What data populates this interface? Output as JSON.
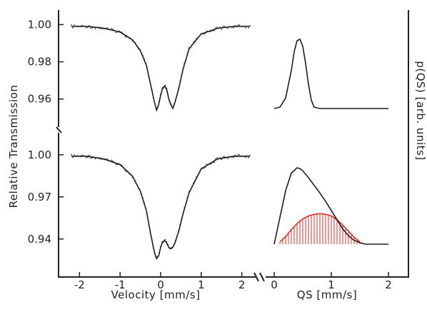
{
  "chart_data": [
    {
      "type": "scatter",
      "panel": "top-left",
      "x_range": [
        -2.2,
        2.2
      ],
      "y_ticks": [
        "1.00",
        "0.98",
        "0.96"
      ],
      "y_tick_values": [
        1.0,
        0.98,
        0.96
      ],
      "ylim": [
        0.948,
        1.004
      ],
      "series": [
        {
          "kind": "fit",
          "x": [
            -2.2,
            -1.8,
            -1.4,
            -1.0,
            -0.7,
            -0.5,
            -0.35,
            -0.25,
            -0.15,
            -0.1,
            -0.05,
            0.0,
            0.05,
            0.1,
            0.15,
            0.2,
            0.25,
            0.3,
            0.35,
            0.45,
            0.55,
            0.7,
            1.0,
            1.4,
            1.8,
            2.2
          ],
          "y": [
            0.999,
            0.999,
            0.998,
            0.996,
            0.992,
            0.986,
            0.978,
            0.968,
            0.958,
            0.954,
            0.957,
            0.962,
            0.966,
            0.967,
            0.965,
            0.96,
            0.957,
            0.955,
            0.958,
            0.966,
            0.976,
            0.987,
            0.995,
            0.998,
            0.999,
            0.999
          ]
        }
      ]
    },
    {
      "type": "scatter",
      "panel": "bottom-left",
      "x_range": [
        -2.2,
        2.2
      ],
      "x_ticks": [
        "-2",
        "-1",
        "0",
        "1",
        "2"
      ],
      "x_tick_values": [
        -2,
        -1,
        0,
        1,
        2
      ],
      "y_ticks": [
        "1.00",
        "0.97",
        "0.94"
      ],
      "y_tick_values": [
        1.0,
        0.97,
        0.94
      ],
      "ylim": [
        0.918,
        1.006
      ],
      "xlabel": "Velocity  [mm/s]",
      "series": [
        {
          "kind": "fit",
          "x": [
            -2.2,
            -1.8,
            -1.4,
            -1.0,
            -0.7,
            -0.5,
            -0.35,
            -0.25,
            -0.15,
            -0.1,
            -0.05,
            0.0,
            0.05,
            0.1,
            0.15,
            0.2,
            0.25,
            0.3,
            0.35,
            0.45,
            0.55,
            0.7,
            1.0,
            1.4,
            1.8,
            2.2
          ],
          "y": [
            0.999,
            0.999,
            0.997,
            0.993,
            0.985,
            0.974,
            0.96,
            0.944,
            0.93,
            0.926,
            0.928,
            0.934,
            0.938,
            0.939,
            0.937,
            0.934,
            0.933,
            0.934,
            0.937,
            0.946,
            0.958,
            0.973,
            0.99,
            0.997,
            0.999,
            0.999
          ]
        }
      ]
    },
    {
      "type": "line",
      "panel": "top-right",
      "x_range": [
        0,
        2
      ],
      "series": [
        {
          "kind": "distribution",
          "x": [
            0.0,
            0.1,
            0.2,
            0.3,
            0.35,
            0.4,
            0.45,
            0.5,
            0.55,
            0.6,
            0.65,
            0.7,
            0.8,
            1.0,
            1.5,
            2.0
          ],
          "y": [
            0.0,
            0.02,
            0.15,
            0.55,
            0.82,
            0.98,
            1.0,
            0.9,
            0.65,
            0.35,
            0.12,
            0.02,
            0.0,
            0.0,
            0.0,
            0.0
          ]
        }
      ]
    },
    {
      "type": "line",
      "panel": "bottom-right",
      "x_range": [
        0,
        2
      ],
      "x_ticks": [
        "0",
        "1",
        "2"
      ],
      "x_tick_values": [
        0,
        1,
        2
      ],
      "xlabel": "QS  [mm/s]",
      "series": [
        {
          "kind": "distribution",
          "x": [
            0.0,
            0.1,
            0.2,
            0.3,
            0.4,
            0.45,
            0.5,
            0.6,
            0.7,
            0.8,
            0.9,
            1.0,
            1.1,
            1.2,
            1.3,
            1.4,
            1.5,
            1.6,
            2.0
          ],
          "y": [
            0.0,
            0.35,
            0.7,
            0.93,
            1.0,
            0.99,
            0.96,
            0.87,
            0.77,
            0.67,
            0.56,
            0.44,
            0.32,
            0.2,
            0.11,
            0.05,
            0.02,
            0.0,
            0.0
          ]
        },
        {
          "kind": "component",
          "color": "#e0302a",
          "x": [
            0.1,
            0.2,
            0.3,
            0.4,
            0.5,
            0.6,
            0.7,
            0.8,
            0.9,
            1.0,
            1.1,
            1.2,
            1.3,
            1.4,
            1.5
          ],
          "y": [
            0.03,
            0.1,
            0.19,
            0.27,
            0.33,
            0.37,
            0.39,
            0.4,
            0.39,
            0.37,
            0.32,
            0.25,
            0.17,
            0.09,
            0.03
          ]
        }
      ]
    }
  ],
  "labels": {
    "y_left": "Relative Transmission",
    "y_right": "p(QS)  [arb. units]"
  },
  "colors": {
    "ink": "#1e1e1e",
    "component": "#e0302a"
  }
}
